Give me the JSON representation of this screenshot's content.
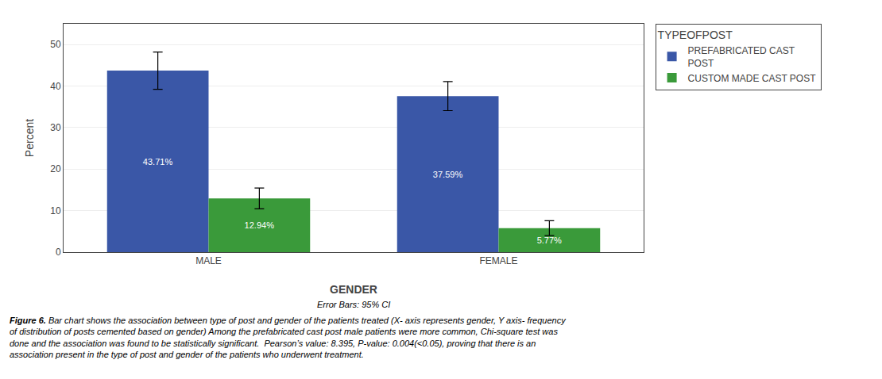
{
  "chart_data": {
    "type": "bar",
    "categories": [
      "MALE",
      "FEMALE"
    ],
    "series": [
      {
        "name": "PREFABRICATED CAST\nPOST",
        "color": "#3a57a7",
        "values": [
          43.71,
          37.59
        ],
        "errors": [
          4.5,
          3.5
        ],
        "value_labels": [
          "43.71%",
          "37.59%"
        ]
      },
      {
        "name": "CUSTOM MADE CAST POST",
        "color": "#3a9a3a",
        "values": [
          12.94,
          5.77
        ],
        "errors": [
          2.5,
          1.8
        ],
        "value_labels": [
          "12.94%",
          "5.77%"
        ]
      }
    ],
    "legend_title": "TYPEOFPOST",
    "xlabel": "GENDER",
    "ylabel": "Percent",
    "ylim": [
      0,
      55
    ],
    "yticks": [
      0,
      10,
      20,
      30,
      40,
      50
    ],
    "grid": true,
    "legend": "right",
    "data_labels": true,
    "annotations": [
      "Error Bars: 95% CI"
    ],
    "caption": {
      "bold": "Figure 6.",
      "lines": [
        " Bar chart shows the association between type of post and gender of the patients treated (X- axis represents gender, Y axis- frequency",
        "of distribution of posts cemented based on gender) Among the prefabricated cast post male patients were more common, Chi-square test was",
        "done and the association was found to be statistically significant.  Pearson’s value: 8.395, P-value: 0.004(<0.05), proving that there is an",
        "association present in the type of post and gender of the patients who underwent treatment."
      ]
    }
  }
}
